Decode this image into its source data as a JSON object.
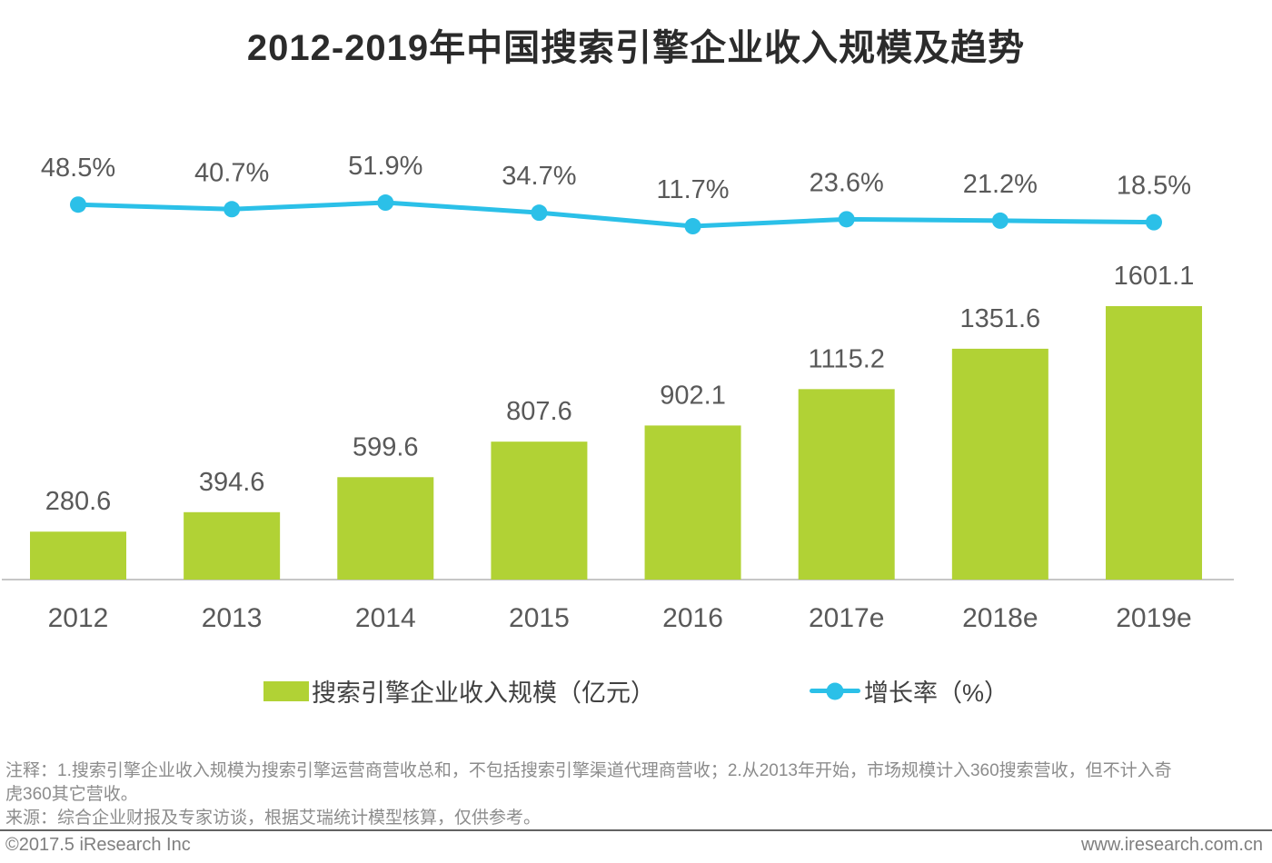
{
  "title": "2012-2019年中国搜索引擎企业收入规模及趋势",
  "chart_data": {
    "type": "combo-bar-line",
    "title": "2012-2019年中国搜索引擎企业收入规模及趋势",
    "categories": [
      "2012",
      "2013",
      "2014",
      "2015",
      "2016",
      "2017e",
      "2018e",
      "2019e"
    ],
    "series": [
      {
        "name": "搜索引擎企业收入规模（亿元）",
        "type": "bar",
        "unit": "亿元",
        "color": "#b1d235",
        "values": [
          280.6,
          394.6,
          599.6,
          807.6,
          902.1,
          1115.2,
          1351.6,
          1601.1
        ]
      },
      {
        "name": "增长率（%）",
        "type": "line",
        "unit": "%",
        "color": "#2bc0e8",
        "values": [
          48.5,
          40.7,
          51.9,
          34.7,
          11.7,
          23.6,
          21.2,
          18.5
        ]
      }
    ],
    "xlabel": "",
    "ylabel": "",
    "grid": false,
    "y_axis_visible": false,
    "value_labels": true,
    "legend_position": "bottom"
  },
  "legend": {
    "bar_label": "搜索引擎企业收入规模（亿元）",
    "line_label": "增长率（%）"
  },
  "notes": {
    "annotation": "注释：1.搜索引擎企业收入规模为搜索引擎运营商营收总和，不包括搜索引擎渠道代理商营收；2.从2013年开始，市场规模计入360搜索营收，但不计入奇虎360其它营收。",
    "source": "来源：综合企业财报及专家访谈，根据艾瑞统计模型核算，仅供参考。"
  },
  "footer": {
    "copyright": "©2017.5 iResearch Inc",
    "website": "www.iresearch.com.cn"
  },
  "colors": {
    "bar": "#b1d235",
    "line": "#2bc0e8",
    "label": "#595959",
    "title": "#2b2b2b",
    "axis": "#c6c6c6"
  }
}
